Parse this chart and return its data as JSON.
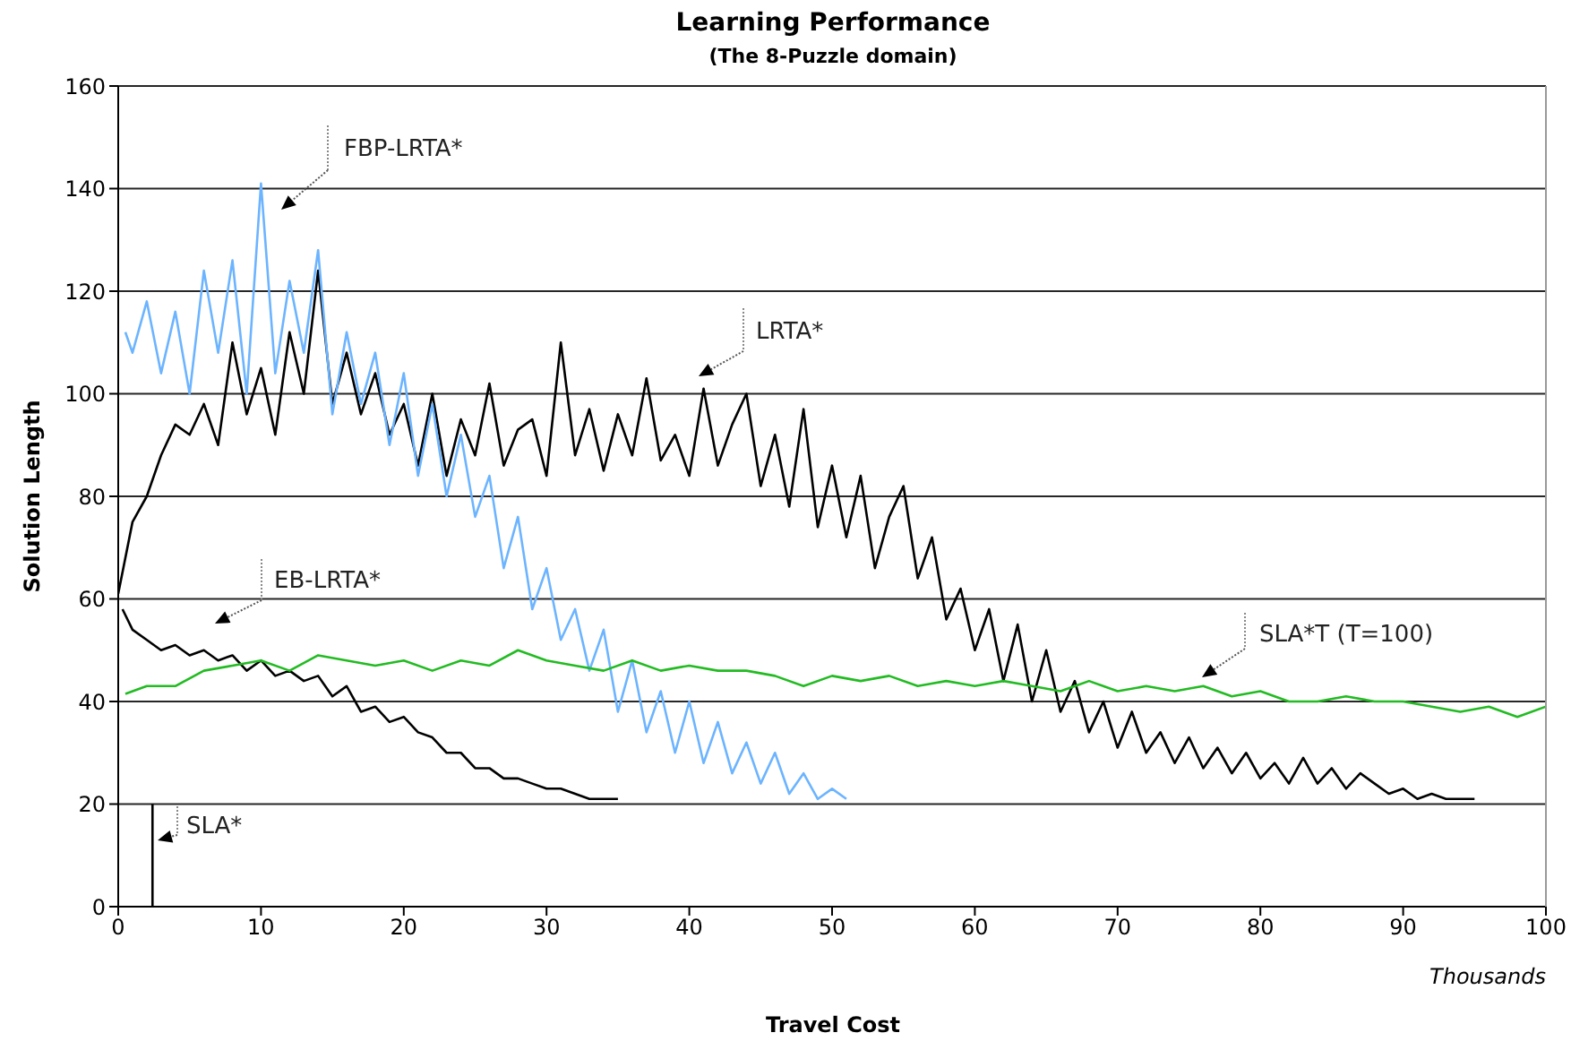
{
  "chart_data": {
    "type": "line",
    "title": "Learning Performance",
    "subtitle": "(The 8-Puzzle domain)",
    "xlabel": "Travel Cost",
    "ylabel": "Solution Length",
    "annotations": [
      "Thousands"
    ],
    "xlim": [
      0,
      100
    ],
    "xticks": [
      0,
      10,
      20,
      30,
      40,
      50,
      60,
      70,
      80,
      90,
      100
    ],
    "ylim": [
      0,
      160
    ],
    "yticks": [
      0,
      20,
      40,
      60,
      80,
      100,
      120,
      140,
      160
    ],
    "grid": "y",
    "marker": "none",
    "series": [
      {
        "name": "LRTA*",
        "color": "#000000",
        "x": [
          0,
          1,
          2,
          3,
          4,
          5,
          6,
          7,
          8,
          9,
          10,
          11,
          12,
          13,
          14,
          15,
          16,
          17,
          18,
          19,
          20,
          21,
          22,
          23,
          24,
          25,
          26,
          27,
          28,
          29,
          30,
          31,
          32,
          33,
          34,
          35,
          36,
          37,
          38,
          39,
          40,
          41,
          42,
          43,
          44,
          45,
          46,
          47,
          48,
          49,
          50,
          51,
          52,
          53,
          54,
          55,
          56,
          57,
          58,
          59,
          60,
          61,
          62,
          63,
          64,
          65,
          66,
          67,
          68,
          69,
          70,
          71,
          72,
          73,
          74,
          75,
          76,
          77,
          78,
          79,
          80,
          81,
          82,
          83,
          84,
          85,
          86,
          87,
          88,
          89,
          90,
          91,
          92,
          93,
          94,
          95
        ],
        "values": [
          61,
          75,
          80,
          88,
          94,
          92,
          98,
          90,
          110,
          96,
          105,
          92,
          112,
          100,
          124,
          98,
          108,
          96,
          104,
          92,
          98,
          86,
          100,
          84,
          95,
          88,
          102,
          86,
          93,
          95,
          84,
          110,
          88,
          97,
          85,
          96,
          88,
          103,
          87,
          92,
          84,
          101,
          86,
          94,
          100,
          82,
          92,
          78,
          97,
          74,
          86,
          72,
          84,
          66,
          76,
          82,
          64,
          72,
          56,
          62,
          50,
          58,
          44,
          55,
          40,
          50,
          38,
          44,
          34,
          40,
          31,
          38,
          30,
          34,
          28,
          33,
          27,
          31,
          26,
          30,
          25,
          28,
          24,
          29,
          24,
          27,
          23,
          26,
          24,
          22,
          23,
          21,
          22,
          21,
          21,
          21
        ]
      },
      {
        "name": "FBP-LRTA*",
        "color": "#6cb4ff",
        "x": [
          0.5,
          1,
          2,
          3,
          4,
          5,
          6,
          7,
          8,
          9,
          10,
          11,
          12,
          13,
          14,
          15,
          16,
          17,
          18,
          19,
          20,
          21,
          22,
          23,
          24,
          25,
          26,
          27,
          28,
          29,
          30,
          31,
          32,
          33,
          34,
          35,
          36,
          37,
          38,
          39,
          40,
          41,
          42,
          43,
          44,
          45,
          46,
          47,
          48,
          49,
          50,
          51
        ],
        "values": [
          112,
          108,
          118,
          104,
          116,
          100,
          124,
          108,
          126,
          100,
          141,
          104,
          122,
          108,
          128,
          96,
          112,
          98,
          108,
          90,
          104,
          84,
          98,
          80,
          92,
          76,
          84,
          66,
          76,
          58,
          66,
          52,
          58,
          46,
          54,
          38,
          48,
          34,
          42,
          30,
          40,
          28,
          36,
          26,
          32,
          24,
          30,
          22,
          26,
          21,
          23,
          21
        ]
      },
      {
        "name": "EB-LRTA*",
        "color": "#000000",
        "x": [
          0.3,
          1,
          2,
          3,
          4,
          5,
          6,
          7,
          8,
          9,
          10,
          11,
          12,
          13,
          14,
          15,
          16,
          17,
          18,
          19,
          20,
          21,
          22,
          23,
          24,
          25,
          26,
          27,
          28,
          29,
          30,
          31,
          32,
          33,
          34,
          35
        ],
        "values": [
          58,
          54,
          52,
          50,
          51,
          49,
          50,
          48,
          49,
          46,
          48,
          45,
          46,
          44,
          45,
          41,
          43,
          38,
          39,
          36,
          37,
          34,
          33,
          30,
          30,
          27,
          27,
          25,
          25,
          24,
          23,
          23,
          22,
          21,
          21,
          21
        ]
      },
      {
        "name": "SLA*T (T=100)",
        "color": "#22bb22",
        "x": [
          0.5,
          2,
          4,
          6,
          8,
          10,
          12,
          14,
          16,
          18,
          20,
          22,
          24,
          26,
          28,
          30,
          32,
          34,
          36,
          38,
          40,
          42,
          44,
          46,
          48,
          50,
          52,
          54,
          56,
          58,
          60,
          62,
          64,
          66,
          68,
          70,
          72,
          74,
          76,
          78,
          80,
          82,
          84,
          86,
          88,
          90,
          92,
          94,
          96,
          98,
          100
        ],
        "values": [
          41.5,
          43,
          43,
          46,
          47,
          48,
          46,
          49,
          48,
          47,
          48,
          46,
          48,
          47,
          50,
          48,
          47,
          46,
          48,
          46,
          47,
          46,
          46,
          45,
          43,
          45,
          44,
          45,
          43,
          44,
          43,
          44,
          43,
          42,
          44,
          42,
          43,
          42,
          43,
          41,
          42,
          40,
          40,
          41,
          40,
          40,
          39,
          38,
          39,
          37,
          39
        ]
      },
      {
        "name": "SLA*",
        "color": "#000000",
        "x": [
          2.4,
          2.4
        ],
        "values": [
          0,
          20
        ]
      }
    ]
  }
}
